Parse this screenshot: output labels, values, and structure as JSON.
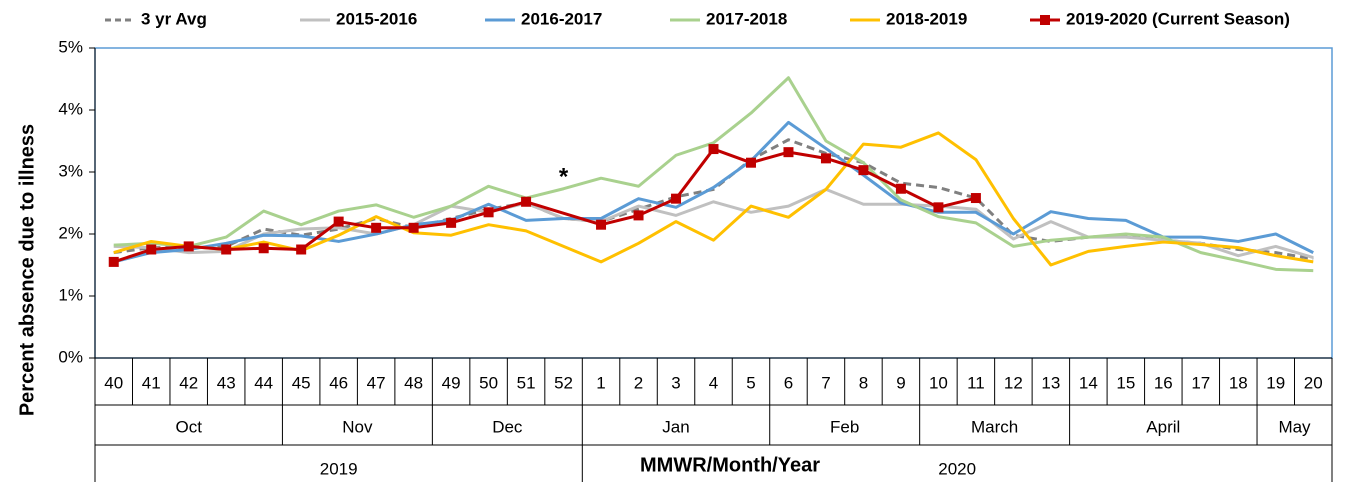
{
  "chart_data": {
    "type": "line",
    "ylabel": "Percent absence due to illness",
    "xlabel": "MMWR/Month/Year",
    "annotations": [
      {
        "text": "*",
        "category": 12,
        "y": 2.9
      }
    ],
    "categories": [
      "40",
      "41",
      "42",
      "43",
      "44",
      "45",
      "46",
      "47",
      "48",
      "49",
      "50",
      "51",
      "52",
      "1",
      "2",
      "3",
      "4",
      "5",
      "6",
      "7",
      "8",
      "9",
      "10",
      "11",
      "12",
      "13",
      "14",
      "15",
      "16",
      "17",
      "18",
      "19",
      "20"
    ],
    "months": [
      {
        "label": "Oct",
        "span": 5
      },
      {
        "label": "Nov",
        "span": 4
      },
      {
        "label": "Dec",
        "span": 4
      },
      {
        "label": "Jan",
        "span": 5
      },
      {
        "label": "Feb",
        "span": 4
      },
      {
        "label": "March",
        "span": 4
      },
      {
        "label": "April",
        "span": 5
      },
      {
        "label": "May",
        "span": 2
      }
    ],
    "years": [
      {
        "label": "2019",
        "span": 13
      },
      {
        "label": "2020",
        "span": 20
      }
    ],
    "ylim": [
      0,
      5
    ],
    "yticks": [
      {
        "value": 0,
        "label": "0%"
      },
      {
        "value": 1,
        "label": "1%"
      },
      {
        "value": 2,
        "label": "2%"
      },
      {
        "value": 3,
        "label": "3%"
      },
      {
        "value": 4,
        "label": "4%"
      },
      {
        "value": 5,
        "label": "5%"
      }
    ],
    "grid": false,
    "legend": "top",
    "series": [
      {
        "name": "3 yr Avg",
        "color": "#808080",
        "dash": true,
        "values": [
          1.7,
          1.78,
          1.78,
          1.8,
          2.08,
          1.98,
          2.08,
          2.25,
          2.1,
          2.25,
          2.4,
          2.5,
          2.25,
          2.2,
          2.4,
          2.6,
          2.72,
          3.2,
          3.52,
          3.3,
          3.15,
          2.82,
          2.75,
          2.58,
          1.98,
          1.88,
          1.95,
          1.97,
          1.9,
          1.85,
          1.75,
          1.7,
          1.6
        ]
      },
      {
        "name": "2015-2016",
        "color": "#c0c0c0",
        "values": [
          1.8,
          1.78,
          1.7,
          1.72,
          2.0,
          2.08,
          2.1,
          2.0,
          2.15,
          2.45,
          2.35,
          2.5,
          2.25,
          2.2,
          2.45,
          2.3,
          2.52,
          2.35,
          2.45,
          2.72,
          2.48,
          2.48,
          2.45,
          2.4,
          1.92,
          2.2,
          1.95,
          1.95,
          1.9,
          1.85,
          1.65,
          1.8,
          1.62
        ]
      },
      {
        "name": "2016-2017",
        "color": "#5b9bd5",
        "values": [
          1.55,
          1.7,
          1.75,
          1.85,
          1.98,
          1.97,
          1.88,
          2.0,
          2.15,
          2.22,
          2.48,
          2.22,
          2.25,
          2.25,
          2.57,
          2.43,
          2.75,
          3.18,
          3.8,
          3.38,
          2.95,
          2.5,
          2.35,
          2.35,
          2.0,
          2.36,
          2.25,
          2.22,
          1.95,
          1.95,
          1.88,
          2.0,
          1.7
        ]
      },
      {
        "name": "2017-2018",
        "color": "#a9d18e",
        "values": [
          1.82,
          1.85,
          1.8,
          1.95,
          2.37,
          2.15,
          2.37,
          2.47,
          2.27,
          2.45,
          2.77,
          2.58,
          2.73,
          2.9,
          2.77,
          3.27,
          3.47,
          3.95,
          4.52,
          3.5,
          3.15,
          2.55,
          2.28,
          2.18,
          1.8,
          1.9,
          1.95,
          2.0,
          1.95,
          1.7,
          1.57,
          1.43,
          1.41
        ]
      },
      {
        "name": "2018-2019",
        "color": "#ffc000",
        "values": [
          1.7,
          1.88,
          1.8,
          1.75,
          1.87,
          1.73,
          1.98,
          2.28,
          2.02,
          1.98,
          2.15,
          2.05,
          1.8,
          1.55,
          1.85,
          2.2,
          1.9,
          2.45,
          2.27,
          2.72,
          3.45,
          3.4,
          3.63,
          3.2,
          2.25,
          1.5,
          1.72,
          1.8,
          1.87,
          1.83,
          1.78,
          1.65,
          1.55
        ]
      },
      {
        "name": "2019-2020 (Current Season)",
        "color": "#c00000",
        "marker": "square",
        "values": [
          1.55,
          1.75,
          1.8,
          1.75,
          1.77,
          1.75,
          2.2,
          2.1,
          2.1,
          2.18,
          2.35,
          2.52,
          null,
          2.15,
          2.3,
          2.57,
          3.37,
          3.15,
          3.32,
          3.22,
          3.03,
          2.73,
          2.43,
          2.58,
          null,
          null,
          null,
          null,
          null,
          null,
          null,
          null,
          null
        ]
      }
    ]
  }
}
